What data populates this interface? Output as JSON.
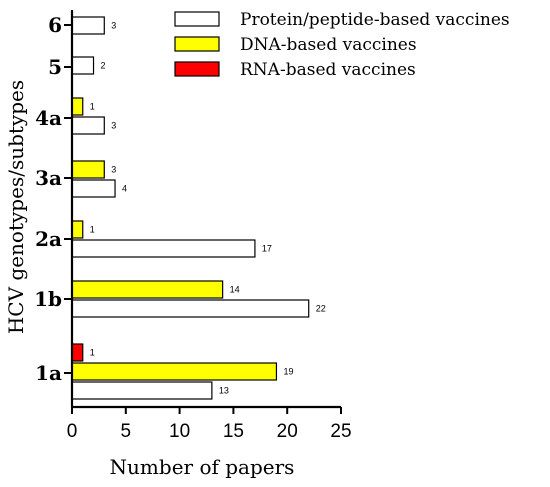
{
  "chart_data": {
    "type": "bar",
    "orientation": "horizontal",
    "xlabel": "Number of papers",
    "ylabel": "HCV genotypes/subtypes",
    "xlim": [
      0,
      25
    ],
    "xticks": [
      "0",
      "5",
      "10",
      "15",
      "20",
      "25"
    ],
    "categories": [
      "6",
      "5",
      "4a",
      "3a",
      "2a",
      "1b",
      "1a"
    ],
    "series": [
      {
        "name": "Protein/peptide-based vaccines",
        "color": "#ffffff",
        "values": [
          3,
          2,
          3,
          4,
          17,
          22,
          13
        ]
      },
      {
        "name": "DNA-based vaccines",
        "color": "#ffff00",
        "values": [
          null,
          null,
          1,
          3,
          1,
          14,
          19
        ]
      },
      {
        "name": "RNA-based vaccines",
        "color": "#ff0000",
        "values": [
          null,
          null,
          null,
          null,
          null,
          null,
          1
        ]
      }
    ],
    "data_labels": {
      "Protein/peptide-based vaccines": [
        "3",
        "2",
        "3",
        "4",
        "17",
        "22",
        "13"
      ],
      "DNA-based vaccines": [
        null,
        null,
        "1",
        "3",
        "1",
        "14",
        "19"
      ],
      "RNA-based vaccines": [
        null,
        null,
        null,
        null,
        null,
        null,
        "1"
      ]
    },
    "legend_position": "top-right",
    "grid": false
  }
}
